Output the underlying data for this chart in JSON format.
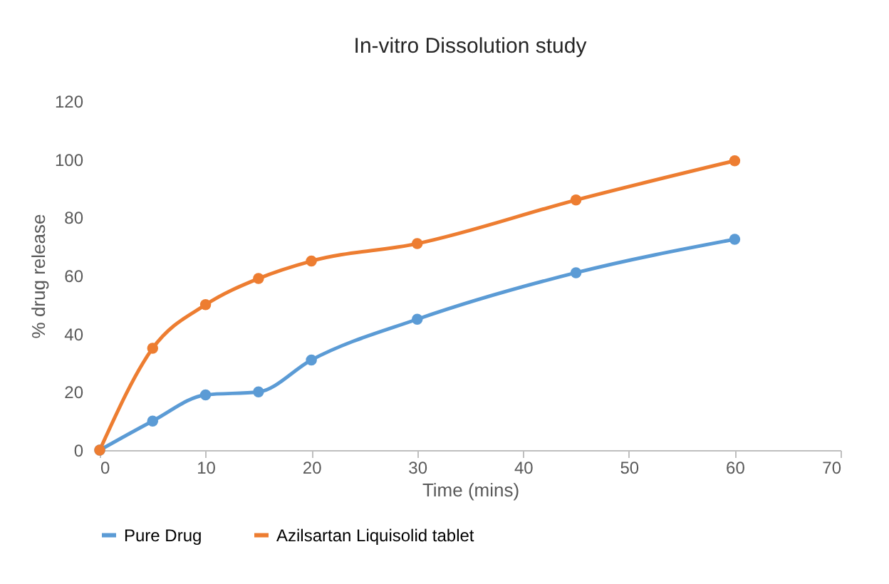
{
  "chart_data": {
    "type": "line",
    "title": "In-vitro Dissolution study",
    "xlabel": "Time (mins)",
    "ylabel": "% drug release",
    "x": [
      0,
      5,
      10,
      15,
      20,
      30,
      45,
      60
    ],
    "series": [
      {
        "name": "Pure Drug",
        "color": "#5b9bd5",
        "values": [
          0,
          10,
          19,
          20,
          31,
          45,
          61,
          72.5
        ]
      },
      {
        "name": "Azilsartan Liquisolid tablet",
        "color": "#ed7d31",
        "values": [
          0,
          35,
          50,
          59,
          65,
          71,
          86,
          99.5
        ]
      }
    ],
    "xlim": [
      0,
      70
    ],
    "xticks": [
      0,
      10,
      20,
      30,
      40,
      50,
      60,
      70
    ],
    "ylim": [
      0,
      120
    ],
    "yticks": [
      0,
      20,
      40,
      60,
      80,
      100,
      120
    ],
    "grid": false,
    "legend": "bottom",
    "marker": "circle",
    "line_style": "solid"
  }
}
